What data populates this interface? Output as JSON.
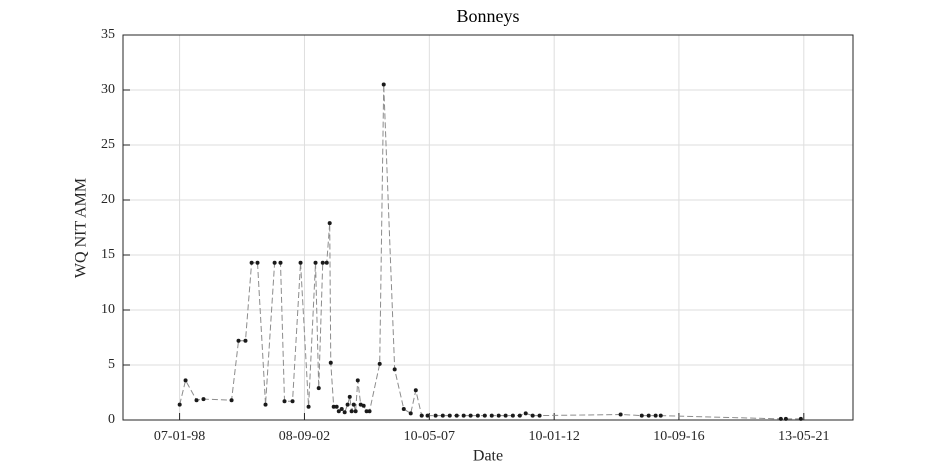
{
  "chart_data": {
    "type": "line",
    "title": "Bonneys",
    "x_label": "Date",
    "y_label": "WQ NIT AMM",
    "x": [
      1998.02,
      1998.24,
      1998.65,
      1998.91,
      1999.96,
      2000.22,
      2000.48,
      2000.71,
      2000.93,
      2001.23,
      2001.57,
      2001.79,
      2001.94,
      2002.24,
      2002.54,
      2002.84,
      2003.1,
      2003.22,
      2003.37,
      2003.52,
      2003.63,
      2003.67,
      2003.78,
      2003.89,
      2003.97,
      2004.08,
      2004.19,
      2004.3,
      2004.38,
      2004.45,
      2004.53,
      2004.6,
      2004.68,
      2004.79,
      2004.9,
      2005.01,
      2005.12,
      2005.5,
      2005.65,
      2006.06,
      2006.4,
      2006.66,
      2006.85,
      2007.07,
      2007.29,
      2007.59,
      2007.86,
      2008.12,
      2008.38,
      2008.64,
      2008.9,
      2009.17,
      2009.43,
      2009.69,
      2009.95,
      2010.21,
      2010.48,
      2010.74,
      2010.96,
      2011.22,
      2011.48,
      2014.51,
      2015.3,
      2015.56,
      2015.82,
      2016.01,
      2020.5,
      2020.69,
      2021.25
    ],
    "series": [
      {
        "name": "WQ NIT AMM",
        "color": "#1a1a1a",
        "values": [
          1.4,
          3.6,
          1.8,
          1.9,
          1.8,
          7.2,
          7.2,
          14.3,
          14.3,
          1.4,
          14.3,
          14.3,
          1.7,
          1.7,
          14.3,
          1.2,
          14.3,
          2.9,
          14.3,
          14.3,
          17.9,
          5.2,
          1.2,
          1.2,
          0.8,
          1.0,
          0.7,
          1.4,
          2.1,
          0.8,
          1.4,
          0.8,
          3.6,
          1.4,
          1.3,
          0.8,
          0.8,
          5.1,
          30.5,
          4.6,
          1.0,
          0.6,
          2.7,
          0.4,
          0.4,
          0.4,
          0.4,
          0.4,
          0.4,
          0.4,
          0.4,
          0.4,
          0.4,
          0.4,
          0.4,
          0.4,
          0.4,
          0.4,
          0.6,
          0.4,
          0.4,
          0.5,
          0.4,
          0.4,
          0.4,
          0.4,
          0.1,
          0.1,
          0.1
        ]
      }
    ],
    "xlim": [
      1995.9,
      2023.2
    ],
    "xticks": [
      {
        "value": 1998.016,
        "label": "07-01-98"
      },
      {
        "value": 2002.686,
        "label": "08-09-02"
      },
      {
        "value": 2007.356,
        "label": "10-05-07"
      },
      {
        "value": 2012.025,
        "label": "10-01-12"
      },
      {
        "value": 2016.69,
        "label": "10-09-16"
      },
      {
        "value": 2021.36,
        "label": "13-05-21"
      }
    ],
    "ylim": [
      0,
      35
    ],
    "yticks": [
      0,
      5,
      10,
      15,
      20,
      25,
      30,
      35
    ],
    "grid": true
  }
}
